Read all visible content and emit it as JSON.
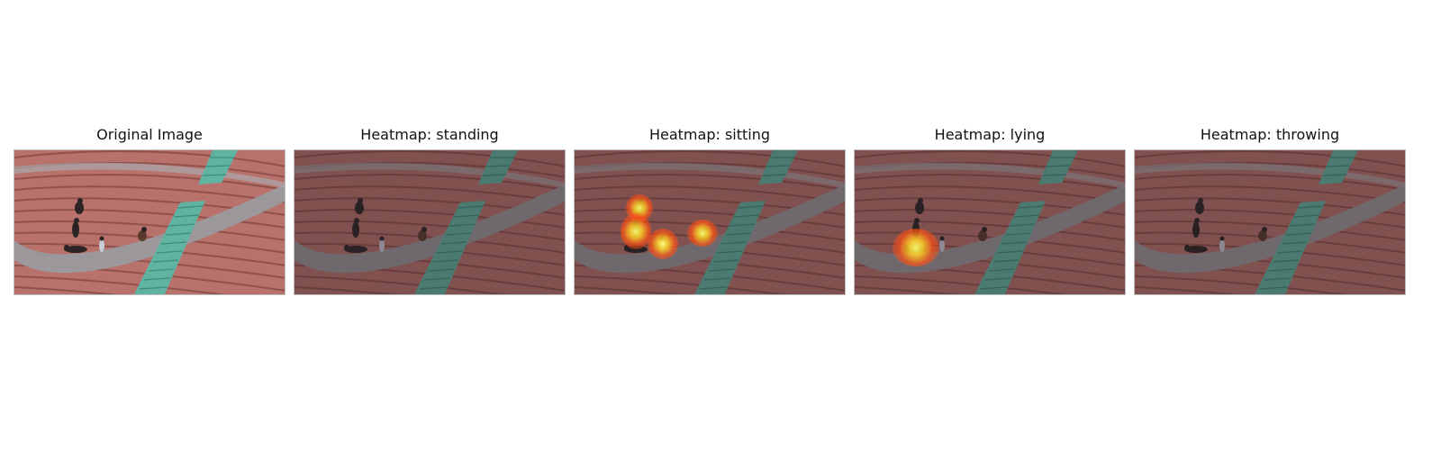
{
  "panels": [
    {
      "title": "Original Image",
      "overlay": false,
      "hotspots": []
    },
    {
      "title": "Heatmap: standing",
      "overlay": true,
      "hotspots": []
    },
    {
      "title": "Heatmap: sitting",
      "overlay": true,
      "hotspots": [
        "person-upper-left",
        "person-middle-left",
        "person-center",
        "person-right"
      ]
    },
    {
      "title": "Heatmap: lying",
      "overlay": true,
      "hotspots": [
        "person-lying"
      ]
    },
    {
      "title": "Heatmap: throwing",
      "overlay": true,
      "hotspots": []
    }
  ],
  "colors": {
    "seat_red": "#b8716b",
    "stair_teal": "#5fb3a0",
    "walkway_gray": "#9a9a9e",
    "heat_core": "#ffff78",
    "heat_edge": "#ff3010"
  }
}
